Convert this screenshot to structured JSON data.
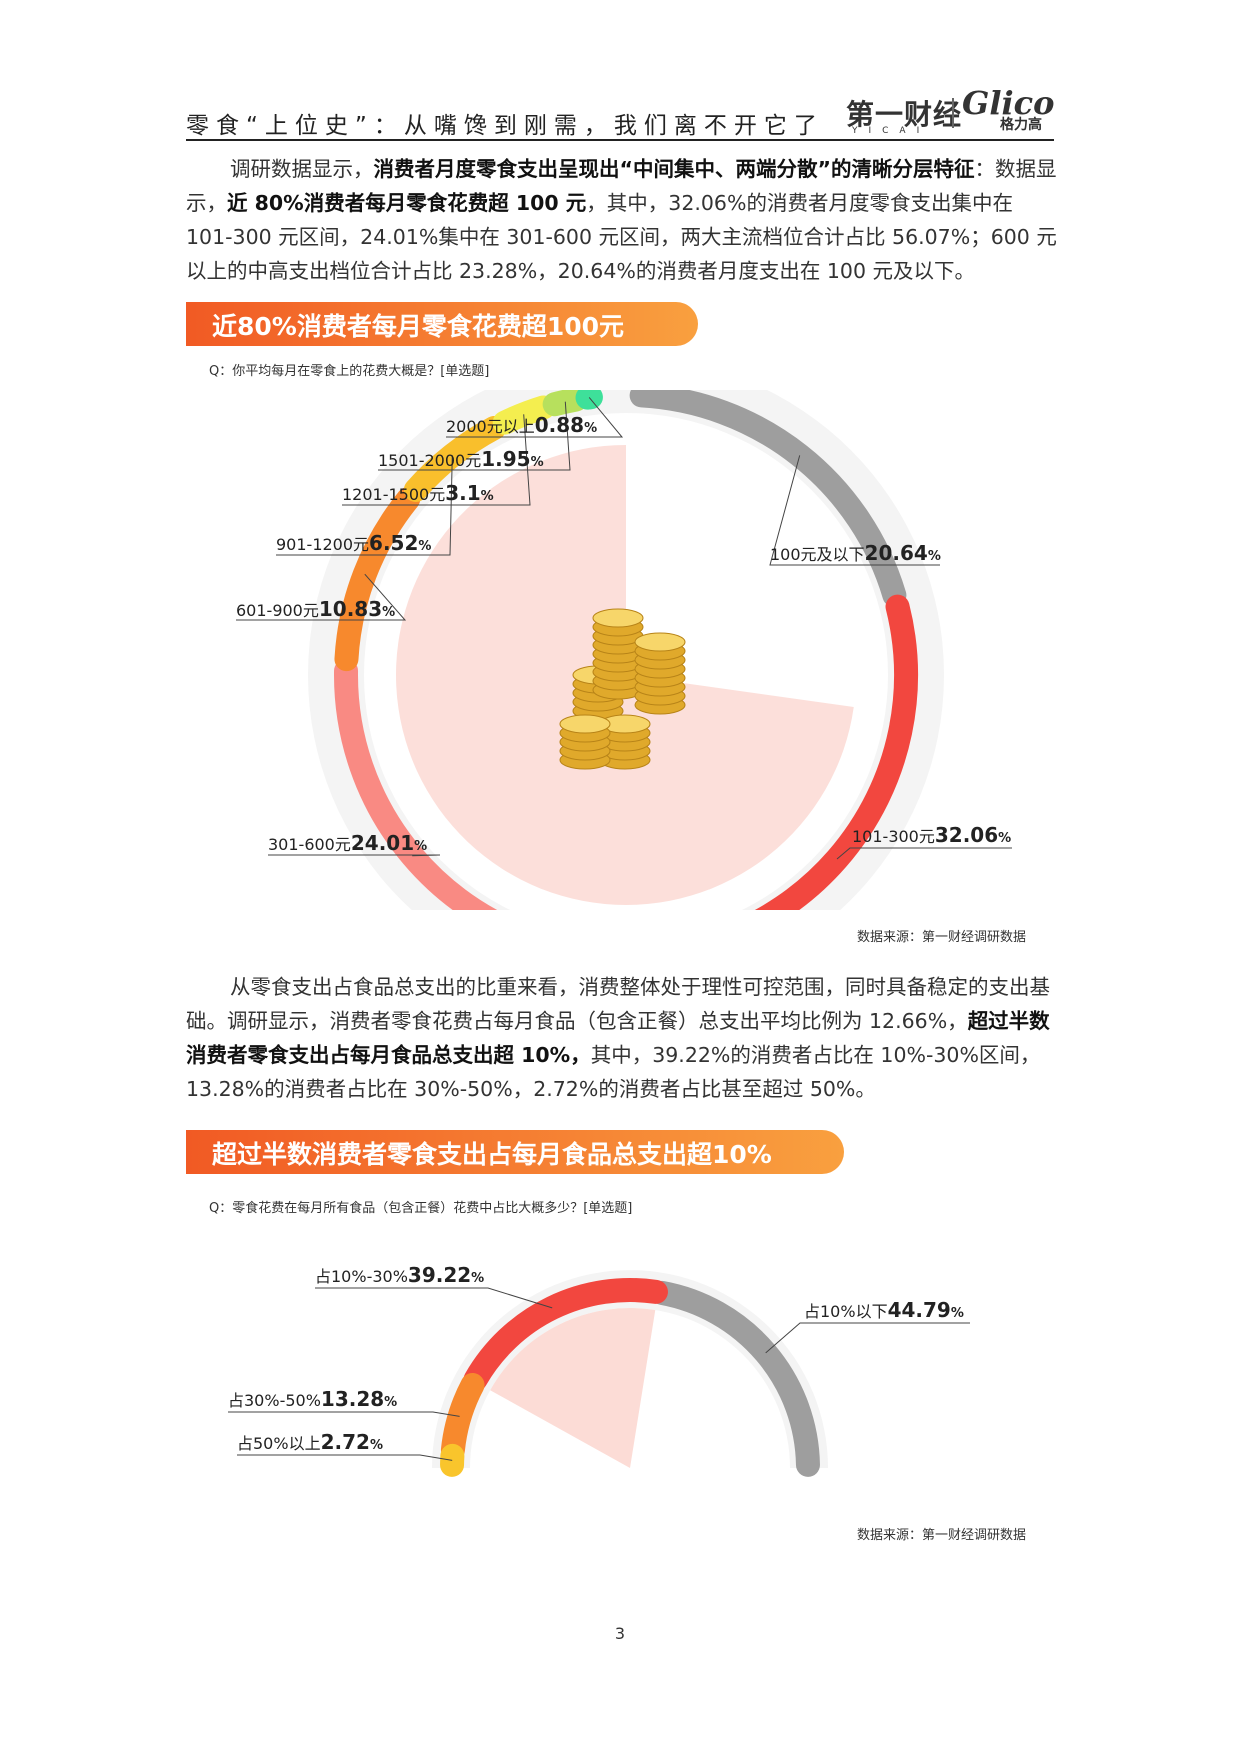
{
  "header": {
    "title": "零食“上位史”：从嘴馋到刚需，我们离不开它了",
    "logo_yicai": "第一财经",
    "logo_yicai_sub": "YICAI",
    "logo_glico": "Glico",
    "logo_glico_sub": "格力高"
  },
  "para1": {
    "s1": "调研数据显示，",
    "b1": "消费者月度零食支出呈现出“中间集中、两端分散”的清晰分层特征",
    "s2": "：数据显示，",
    "b2": "近 80%消费者每月零食花费超 100 元",
    "s3": "，其中，32.06%的消费者月度零食支出集中在 101-300 元区间，24.01%集中在 301-600 元区间，两大主流档位合计占比 56.07%；600 元以上的中高支出档位合计占比 23.28%，20.64%的消费者月度支出在 100 元及以下。"
  },
  "banner1": "近80%消费者每月零食花费超100元",
  "question1": "Q：你平均每月在零食上的花费大概是？[单选题]",
  "source1": "数据来源：第一财经调研数据",
  "para2": {
    "s1": "从零食支出占食品总支出的比重来看，消费整体处于理性可控范围，同时具备稳定的支出基础。调研显示，消费者零食花费占每月食品（包含正餐）总支出平均比例为 12.66%，",
    "b1": "超过半数消费者零食支出占每月食品总支出超 10%，",
    "s2": "其中，39.22%的消费者占比在 10%-30%区间，13.28%的消费者占比在 30%-50%，2.72%的消费者占比甚至超过 50%。"
  },
  "banner2": "超过半数消费者零食支出占每月食品总支出超10%",
  "question2": "Q：零食花费在每月所有食品（包含正餐）花费中占比大概多少？[单选题]",
  "source2": "数据来源：第一财经调研数据",
  "page_number": "3",
  "chart_data": [
    {
      "type": "pie",
      "categories": [
        "100元及以下",
        "101-300元",
        "301-600元",
        "601-900元",
        "901-1200元",
        "1201-1500元",
        "1501-2000元",
        "2000元以上"
      ],
      "values": [
        20.64,
        32.06,
        24.01,
        10.83,
        6.52,
        3.1,
        1.95,
        0.88
      ],
      "value_labels": [
        "20.64",
        "32.06",
        "24.01",
        "10.83",
        "6.52",
        "3.1",
        "1.95",
        "0.88"
      ],
      "unit": "%",
      "colors": [
        "#9e9e9e",
        "#f2473f",
        "#f98a83",
        "#f7892d",
        "#f9bf2c",
        "#f4ee4f",
        "#b7e05d",
        "#3ee09a"
      ]
    },
    {
      "type": "pie",
      "categories": [
        "占10%以下",
        "占10%-30%",
        "占30%-50%",
        "占50%以上"
      ],
      "values": [
        44.79,
        39.22,
        13.28,
        2.72
      ],
      "value_labels": [
        "44.79",
        "39.22",
        "13.28",
        "2.72"
      ],
      "unit": "%",
      "colors": [
        "#9e9e9e",
        "#f2473f",
        "#f7892d",
        "#f9c52c"
      ]
    }
  ]
}
